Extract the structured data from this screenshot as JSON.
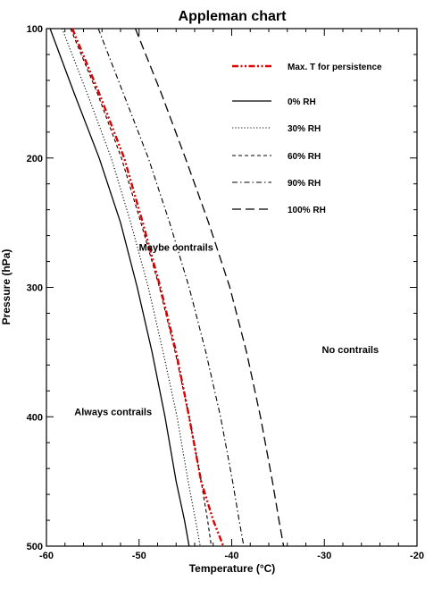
{
  "chart_data": {
    "type": "line",
    "title": "Appleman chart",
    "xlabel": "Temperature (°C)",
    "ylabel": "Pressure (hPa)",
    "xlim": [
      -60,
      -20
    ],
    "ylim": [
      100,
      500
    ],
    "y_inverted": true,
    "xticks": [
      -60,
      -50,
      -40,
      -30,
      -20
    ],
    "yticks": [
      100,
      200,
      300,
      400,
      500
    ],
    "grid": false,
    "legend_position": "top-right",
    "series": [
      {
        "name": "Max. T for persistence",
        "style": "dash-dot-dot",
        "color": "#e00000",
        "x": [
          -57.2,
          -54.3,
          -51.6,
          -49.6,
          -47.7,
          -46.0,
          -44.6,
          -43.3,
          -42.0,
          -40.9
        ],
        "y": [
          100,
          150,
          200,
          250,
          300,
          350,
          400,
          450,
          480,
          500
        ]
      },
      {
        "name": "0% RH",
        "style": "solid",
        "color": "#000000",
        "x": [
          -59.6,
          -57.0,
          -54.3,
          -52.0,
          -50.2,
          -48.6,
          -47.2,
          -46.0,
          -45.1,
          -44.6
        ],
        "y": [
          100,
          150,
          200,
          250,
          300,
          350,
          400,
          450,
          480,
          500
        ]
      },
      {
        "name": "30% RH",
        "style": "dotted",
        "color": "#000000",
        "x": [
          -58.3,
          -55.6,
          -53.0,
          -50.9,
          -49.0,
          -47.4,
          -45.9,
          -44.7,
          -43.9,
          -43.4
        ],
        "y": [
          100,
          150,
          200,
          250,
          300,
          350,
          400,
          450,
          480,
          500
        ]
      },
      {
        "name": "60% RH",
        "style": "dashed",
        "color": "#000000",
        "x": [
          -57.4,
          -54.5,
          -51.9,
          -49.8,
          -47.8,
          -46.1,
          -44.6,
          -43.3,
          -42.6,
          -42.2
        ],
        "y": [
          100,
          150,
          200,
          250,
          300,
          350,
          400,
          450,
          480,
          500
        ]
      },
      {
        "name": "90% RH",
        "style": "dash-dot",
        "color": "#000000",
        "x": [
          -54.4,
          -51.7,
          -49.0,
          -46.7,
          -44.6,
          -42.8,
          -41.2,
          -39.9,
          -39.2,
          -38.7
        ],
        "y": [
          100,
          150,
          200,
          250,
          300,
          350,
          400,
          450,
          480,
          500
        ]
      },
      {
        "name": "100% RH",
        "style": "long-dash",
        "color": "#000000",
        "x": [
          -50.4,
          -47.6,
          -45.0,
          -42.5,
          -40.2,
          -38.4,
          -36.9,
          -35.6,
          -34.9,
          -34.4
        ],
        "y": [
          100,
          150,
          200,
          250,
          300,
          350,
          400,
          450,
          480,
          500
        ]
      }
    ],
    "annotations": [
      {
        "text": "Maybe contrails",
        "x": -46.0,
        "y": 269
      },
      {
        "text": "No contrails",
        "x": -27.2,
        "y": 348
      },
      {
        "text": "Always contrails",
        "x": -52.8,
        "y": 396
      }
    ]
  }
}
